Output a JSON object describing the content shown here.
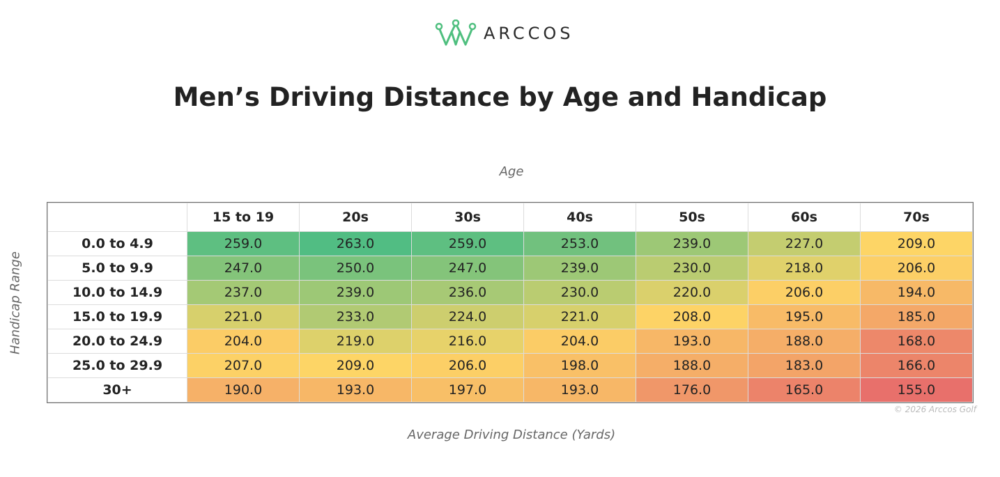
{
  "brand": {
    "name": "ARCCOS",
    "logo_icon": "crown-icon",
    "logo_color": "#4fbf7f"
  },
  "title": "Men’s Driving Distance by Age and Handicap",
  "copyright": "© 2026 Arccos Golf",
  "chart_data": {
    "type": "heatmap",
    "title": "Men’s Driving Distance by Age and Handicap",
    "xlabel": "Age",
    "ylabel": "Handicap Range",
    "value_label": "Average Driving Distance (Yards)",
    "columns": [
      "15 to 19",
      "20s",
      "30s",
      "40s",
      "50s",
      "60s",
      "70s"
    ],
    "rows": [
      "0.0 to 4.9",
      "5.0 to 9.9",
      "10.0 to 14.9",
      "15.0 to 19.9",
      "20.0 to 24.9",
      "25.0 to 29.9",
      "30+"
    ],
    "values": [
      [
        259.0,
        263.0,
        259.0,
        253.0,
        239.0,
        227.0,
        209.0
      ],
      [
        247.0,
        250.0,
        247.0,
        239.0,
        230.0,
        218.0,
        206.0
      ],
      [
        237.0,
        239.0,
        236.0,
        230.0,
        220.0,
        206.0,
        194.0
      ],
      [
        221.0,
        233.0,
        224.0,
        221.0,
        208.0,
        195.0,
        185.0
      ],
      [
        204.0,
        219.0,
        216.0,
        204.0,
        193.0,
        188.0,
        168.0
      ],
      [
        207.0,
        209.0,
        206.0,
        198.0,
        188.0,
        183.0,
        166.0
      ],
      [
        190.0,
        193.0,
        197.0,
        193.0,
        176.0,
        165.0,
        155.0
      ]
    ],
    "color_scale": {
      "low": "#e8706b",
      "mid": "#fdd566",
      "high": "#51bd83",
      "min": 155,
      "mid_value": 209,
      "max": 263
    }
  }
}
